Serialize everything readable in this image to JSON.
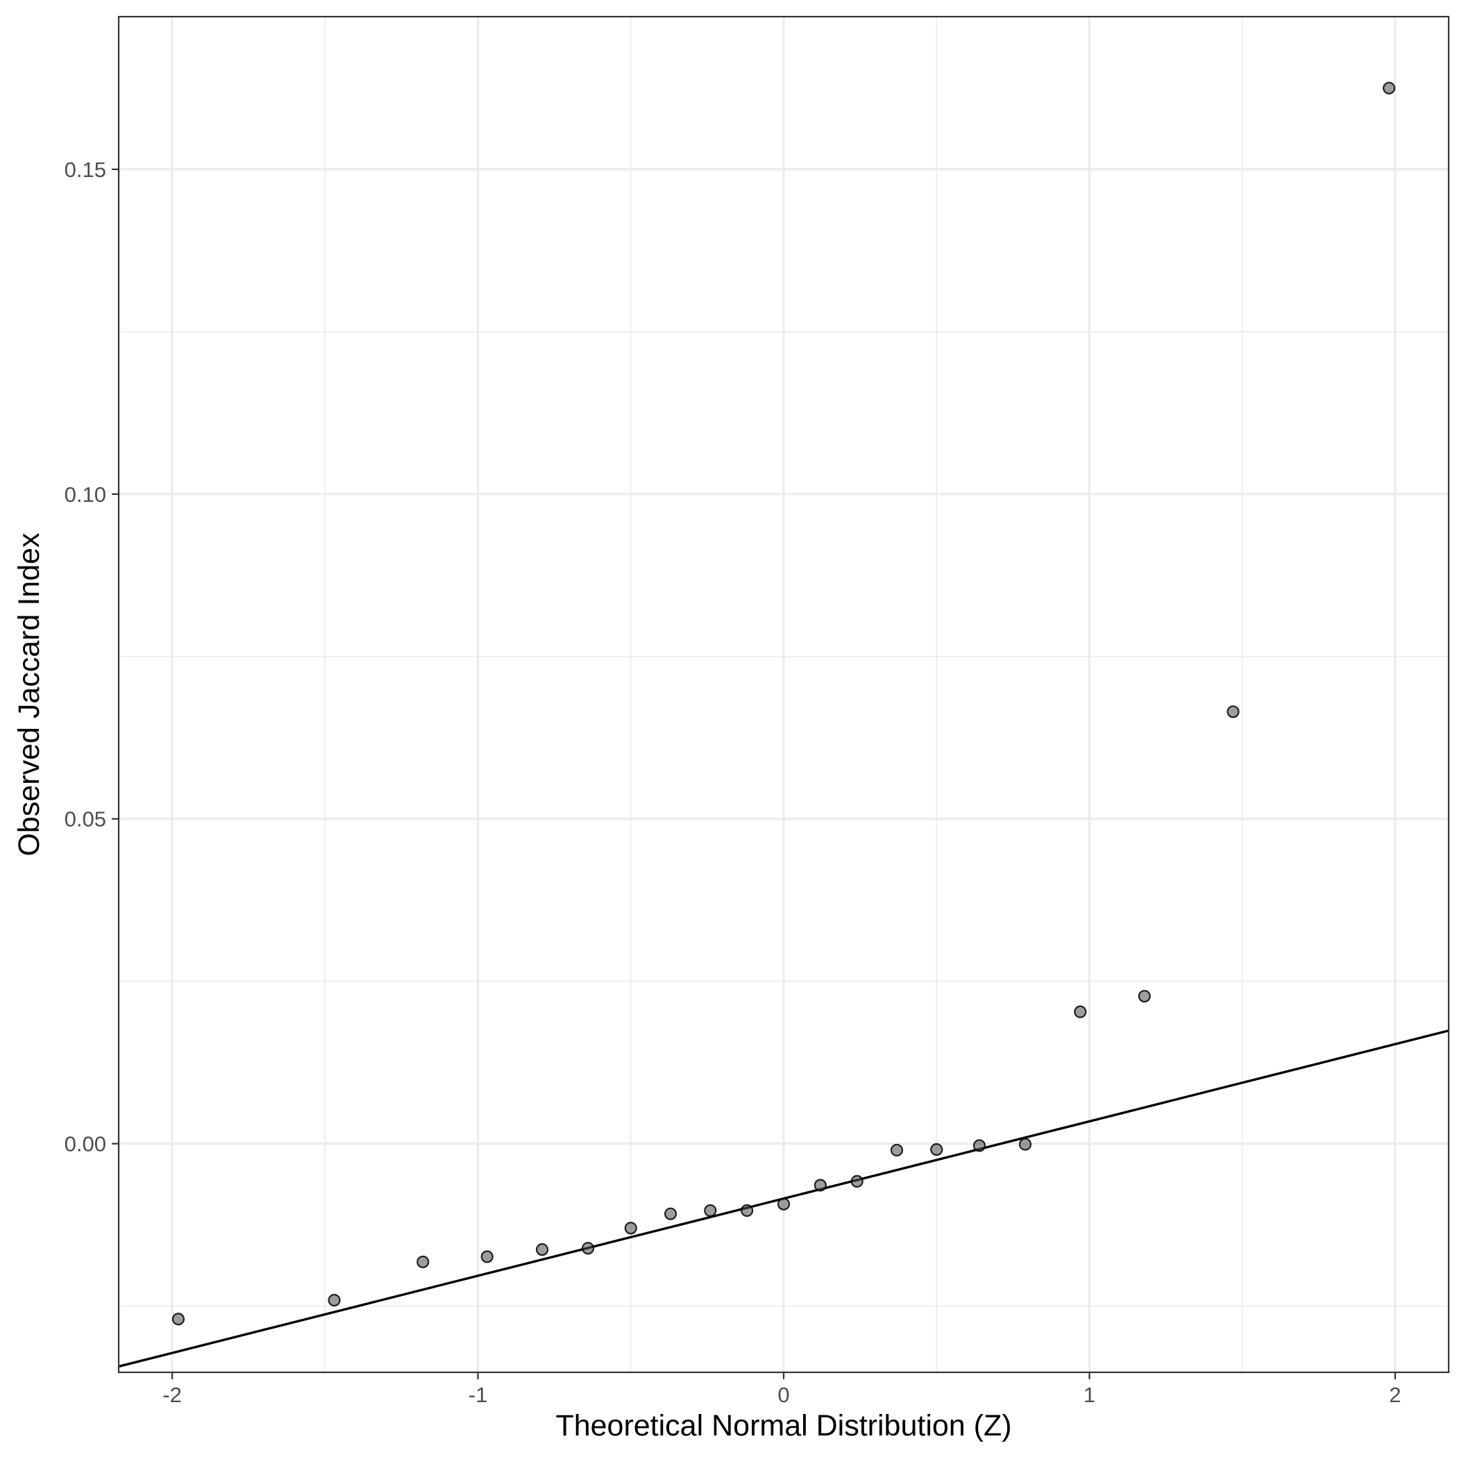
{
  "chart_data": {
    "type": "scatter",
    "title": "",
    "xlabel": "Theoretical Normal Distribution (Z)",
    "ylabel": "Observed Jaccard Index",
    "xlim": [
      -2.175,
      2.175
    ],
    "ylim": [
      -0.0352,
      0.1735
    ],
    "x_ticks": [
      {
        "value": -2,
        "label": "-2"
      },
      {
        "value": -1,
        "label": "-1"
      },
      {
        "value": 0,
        "label": "0"
      },
      {
        "value": 1,
        "label": "1"
      },
      {
        "value": 2,
        "label": "2"
      }
    ],
    "y_ticks": [
      {
        "value": 0.0,
        "label": "0.00"
      },
      {
        "value": 0.05,
        "label": "0.05"
      },
      {
        "value": 0.1,
        "label": "0.10"
      },
      {
        "value": 0.15,
        "label": "0.15"
      }
    ],
    "x_minor_ticks": [
      -1.5,
      -0.5,
      0.5,
      1.5
    ],
    "y_minor_ticks": [
      -0.025,
      0.025,
      0.075,
      0.125
    ],
    "grid": true,
    "legend": "none",
    "points": {
      "x": [
        -1.98,
        -1.47,
        -1.18,
        -0.97,
        -0.79,
        -0.64,
        -0.5,
        -0.37,
        -0.24,
        -0.12,
        0.0,
        0.12,
        0.24,
        0.37,
        0.5,
        0.64,
        0.79,
        0.97,
        1.18,
        1.47,
        1.98
      ],
      "y": [
        -0.027,
        -0.0241,
        -0.0182,
        -0.0174,
        -0.0163,
        -0.0161,
        -0.013,
        -0.0108,
        -0.0103,
        -0.0103,
        -0.0093,
        -0.0064,
        -0.0058,
        -0.001,
        -0.0009,
        -0.0003,
        -0.0001,
        0.0203,
        0.0227,
        0.0665,
        0.1625
      ]
    },
    "reference_line": {
      "x": [
        -2.175,
        2.175
      ],
      "y": [
        -0.0343,
        0.0174
      ]
    },
    "colors": {
      "point_fill": "#4d4d4d",
      "point_stroke": "#000000",
      "line": "#000000",
      "panel_border": "#333333",
      "grid": "#ebebeb",
      "tick_label": "#4d4d4d",
      "axis_title": "#000000"
    }
  }
}
